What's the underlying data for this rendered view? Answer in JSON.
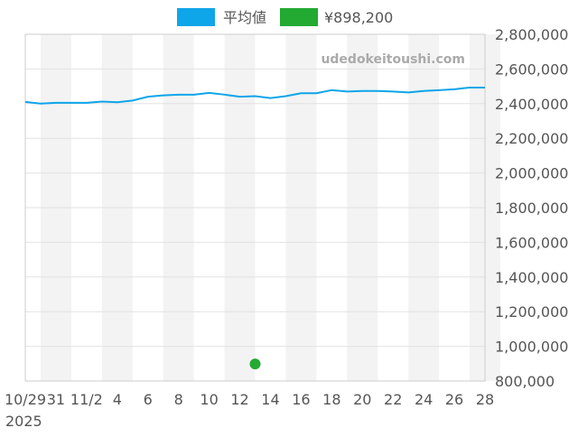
{
  "chart_data": {
    "type": "line",
    "title": "",
    "xlabel": "",
    "ylabel": "",
    "x": [
      "2025-10-29",
      "2025-10-30",
      "2025-10-31",
      "2025-11-01",
      "2025-11-02",
      "2025-11-03",
      "2025-11-04",
      "2025-11-05",
      "2025-11-06",
      "2025-11-07",
      "2025-11-08",
      "2025-11-09",
      "2025-11-10",
      "2025-11-11",
      "2025-11-12",
      "2025-11-13",
      "2025-11-14",
      "2025-11-15",
      "2025-11-16",
      "2025-11-17",
      "2025-11-18",
      "2025-11-19",
      "2025-11-20",
      "2025-11-21",
      "2025-11-22",
      "2025-11-23",
      "2025-11-24",
      "2025-11-25",
      "2025-11-26",
      "2025-11-27",
      "2025-11-28"
    ],
    "x_tick_labels": [
      "10/29",
      "31",
      "11/2",
      "4",
      "6",
      "8",
      "10",
      "12",
      "14",
      "16",
      "18",
      "20",
      "22",
      "24",
      "26",
      "28"
    ],
    "x_year_label": "2025",
    "ylim": [
      800000,
      2800000
    ],
    "y_ticks": [
      800000,
      1000000,
      1200000,
      1400000,
      1600000,
      1800000,
      2000000,
      2200000,
      2400000,
      2600000,
      2800000
    ],
    "y_tick_labels": [
      "800,000",
      "1,000,000",
      "1,200,000",
      "1,400,000",
      "1,600,000",
      "1,800,000",
      "2,000,000",
      "2,200,000",
      "2,400,000",
      "2,600,000",
      "2,800,000"
    ],
    "y_axis_side": "right",
    "grid": true,
    "legend_placement": "top",
    "series": [
      {
        "name": "平均値",
        "type": "line",
        "color": "#0ea5e9",
        "values": [
          2410000,
          2400000,
          2405000,
          2405000,
          2405000,
          2412000,
          2408000,
          2418000,
          2440000,
          2448000,
          2452000,
          2452000,
          2462000,
          2452000,
          2440000,
          2443000,
          2432000,
          2443000,
          2460000,
          2460000,
          2478000,
          2470000,
          2473000,
          2473000,
          2470000,
          2465000,
          2473000,
          2478000,
          2483000,
          2493000,
          2493000
        ]
      },
      {
        "name": "¥898,200",
        "type": "scatter",
        "color": "#22aa33",
        "points": [
          {
            "x": "2025-11-13",
            "y": 898200
          }
        ]
      }
    ]
  },
  "watermark": "udedokeitoushi.com"
}
